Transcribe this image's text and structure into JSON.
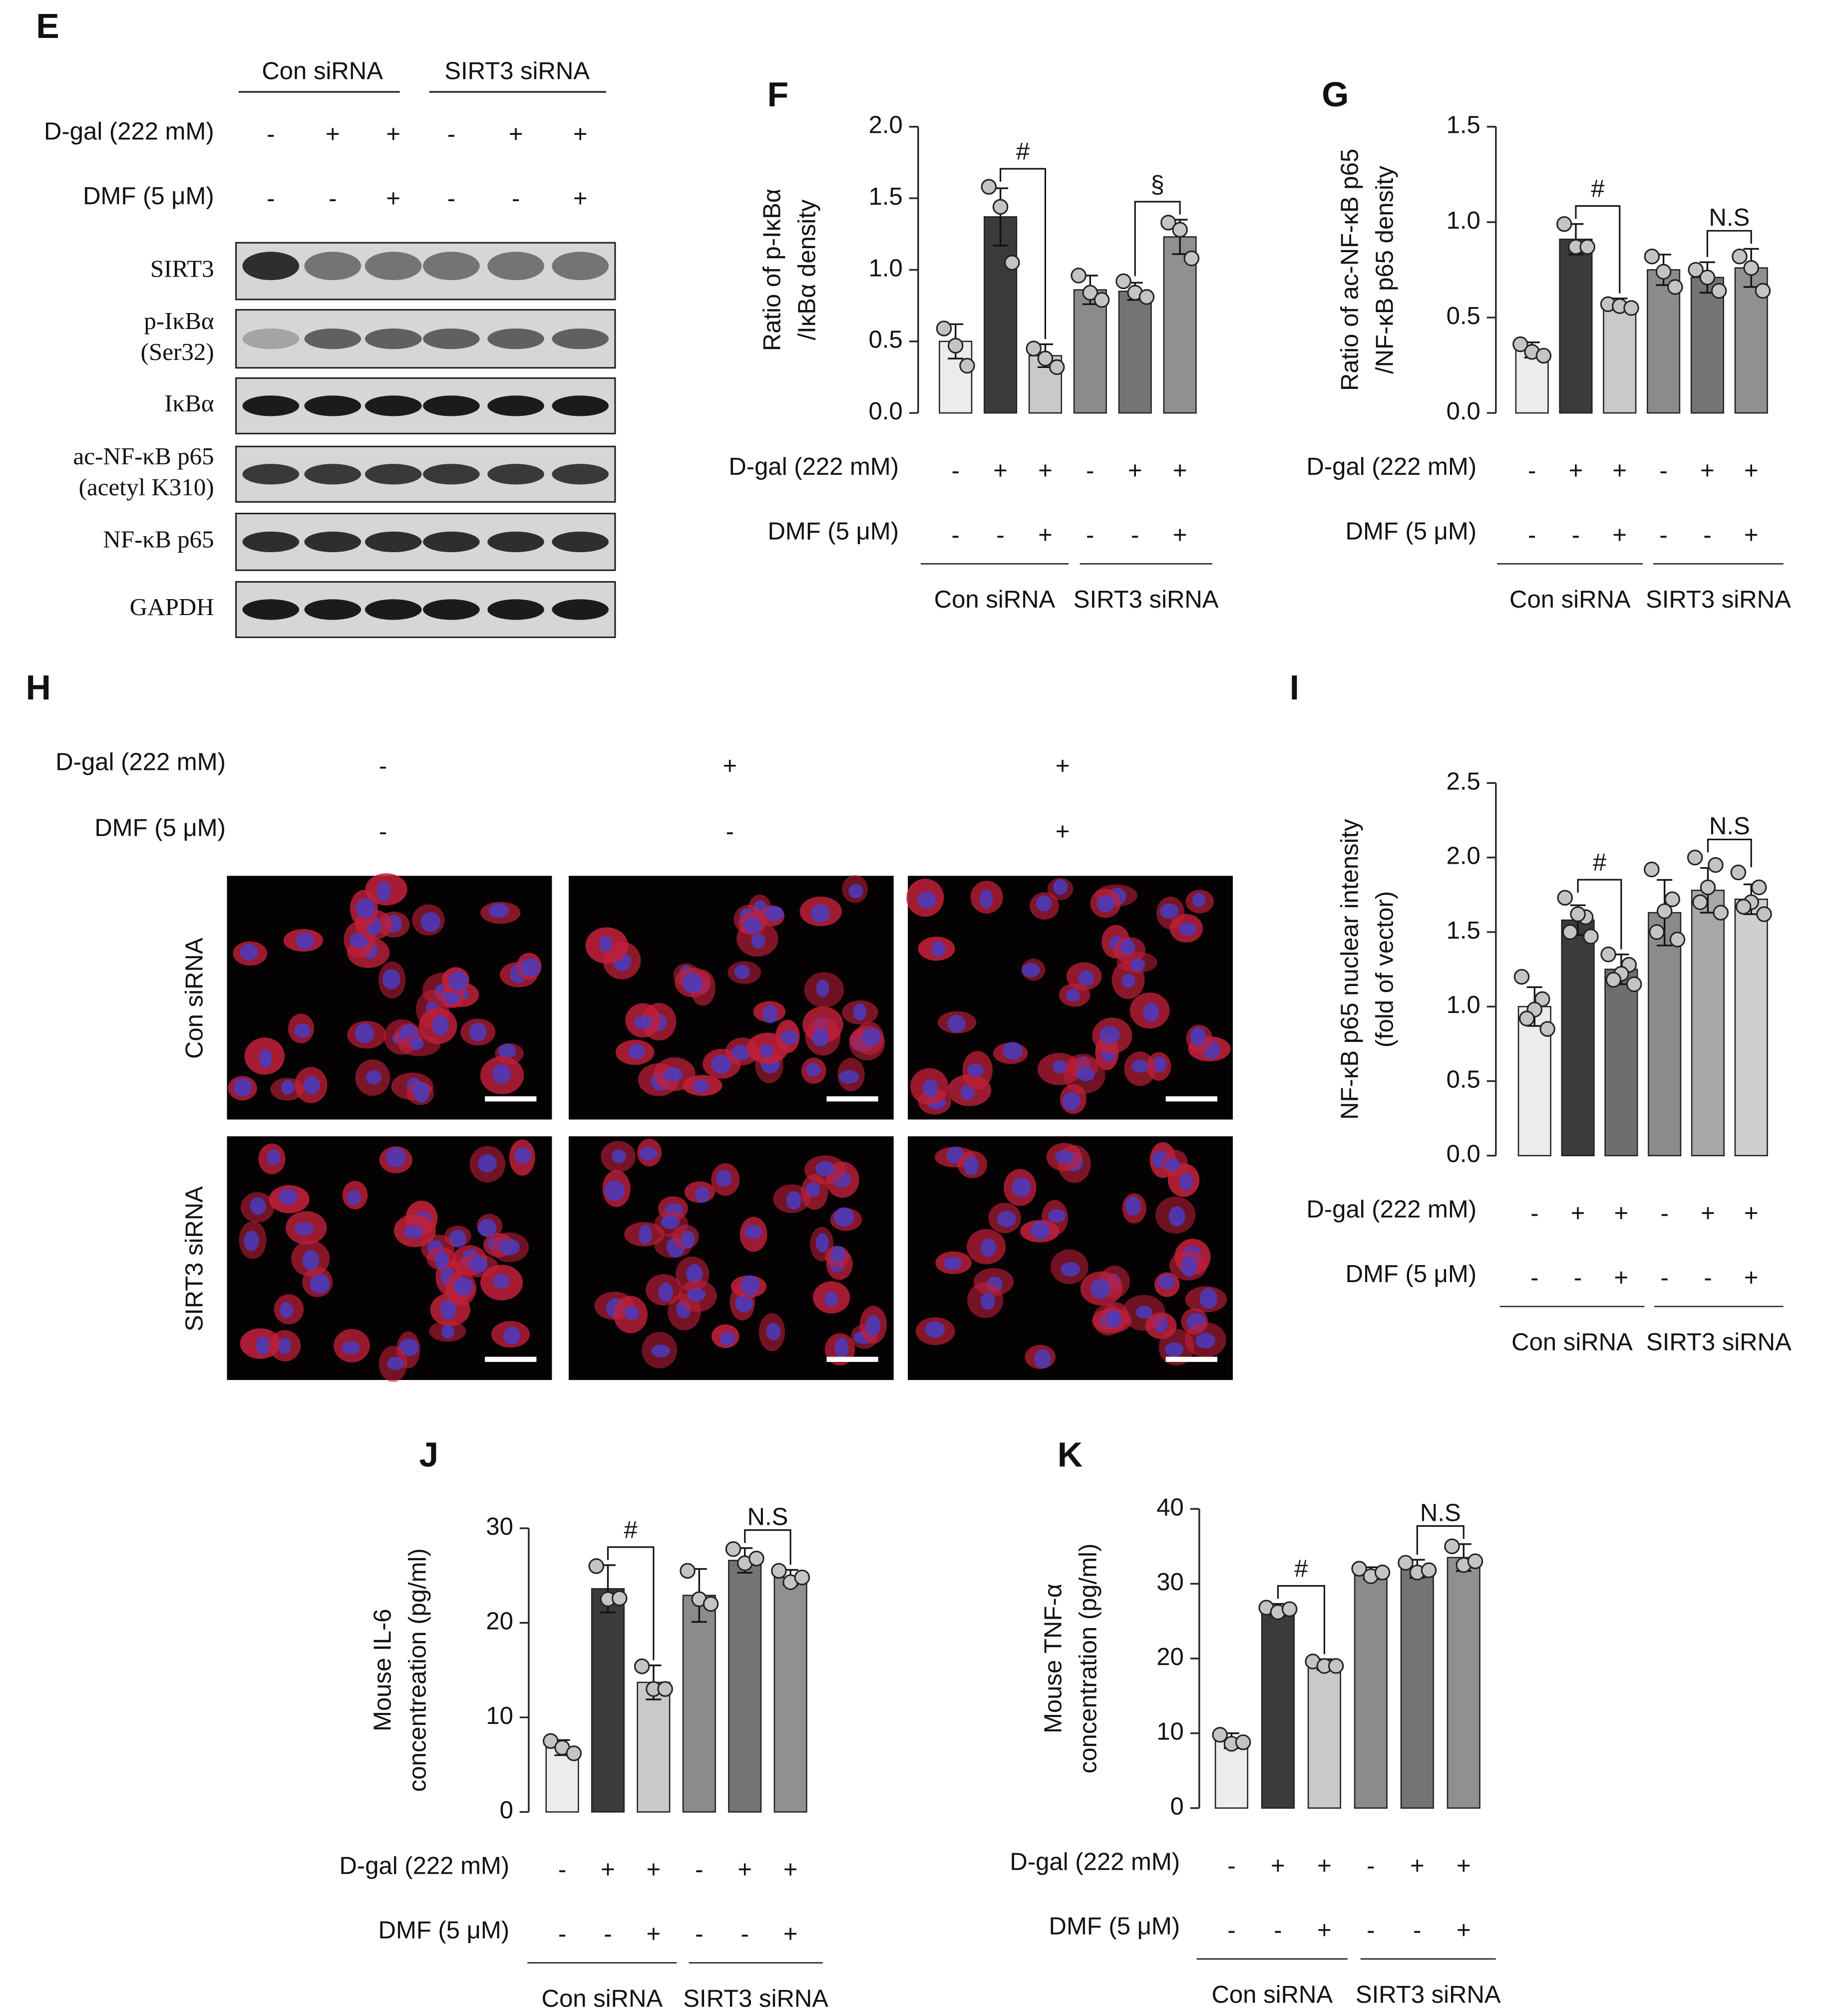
{
  "panel_E": {
    "letter": "E",
    "groups": [
      "Con siRNA",
      "SIRT3 siRNA"
    ],
    "conditions": [
      {
        "label": "D-gal (222 mM)",
        "signs": [
          "-",
          "+",
          "+",
          "-",
          "+",
          "+"
        ]
      },
      {
        "label": "DMF (5 μM)",
        "signs": [
          "-",
          "-",
          "+",
          "-",
          "-",
          "+"
        ]
      }
    ],
    "blots": [
      [
        "SIRT3"
      ],
      [
        "p-IκBα",
        "(Ser32)"
      ],
      [
        "IκBα"
      ],
      [
        "ac-NF-κB p65",
        "(acetyl K310)"
      ],
      [
        "NF-κB p65"
      ],
      [
        "GAPDH"
      ]
    ]
  },
  "panel_H": {
    "letter": "H",
    "conditions": [
      {
        "label": "D-gal (222 mM)",
        "signs": [
          "-",
          "+",
          "+"
        ]
      },
      {
        "label": "DMF (5 μM)",
        "signs": [
          "-",
          "-",
          "+"
        ]
      }
    ],
    "rows": [
      "Con siRNA",
      "SIRT3 siRNA"
    ]
  },
  "chart_data": [
    {
      "type": "bar",
      "panel": "F",
      "ylabel": [
        "Ratio of p-IκBα",
        "/IκBα  density"
      ],
      "categories": [
        null,
        null,
        null,
        null,
        null,
        null
      ],
      "values": [
        0.5,
        1.37,
        0.4,
        0.86,
        0.85,
        1.23
      ],
      "errors": [
        0.12,
        0.2,
        0.08,
        0.1,
        0.06,
        0.12
      ],
      "points": [
        [
          0.59,
          0.47,
          0.33
        ],
        [
          1.58,
          1.44,
          1.05
        ],
        [
          0.45,
          0.38,
          0.32
        ],
        [
          0.96,
          0.84,
          0.79
        ],
        [
          0.92,
          0.84,
          0.81
        ],
        [
          1.33,
          1.28,
          1.08
        ]
      ],
      "colors": [
        "#ececec",
        "#3b3b3d",
        "#c9c9cb",
        "#8b8b8d",
        "#747476",
        "#909092"
      ],
      "ylim": [
        0,
        2.0
      ],
      "yticks": [
        {
          "value": 0,
          "label": "0.0"
        },
        {
          "value": 0.5,
          "label": "0.5"
        },
        {
          "value": 1,
          "label": "1.0"
        },
        {
          "value": 1.5,
          "label": "1.5"
        },
        {
          "value": 2,
          "label": "2.0"
        }
      ],
      "conditions": [
        {
          "label": "D-gal (222 mM)",
          "signs": [
            "-",
            "+",
            "+",
            "-",
            "+",
            "+"
          ]
        },
        {
          "label": "DMF (5 μM)",
          "signs": [
            "-",
            "-",
            "+",
            "-",
            "-",
            "+"
          ]
        }
      ],
      "groups": [
        "Con siRNA",
        "SIRT3 siRNA"
      ],
      "annotations": [
        "#",
        "§"
      ]
    },
    {
      "type": "bar",
      "panel": "G",
      "ylabel": [
        "Ratio of ac-NF-κB p65",
        "/NF-κB p65 density"
      ],
      "categories": [
        null,
        null,
        null,
        null,
        null,
        null
      ],
      "values": [
        0.33,
        0.91,
        0.57,
        0.75,
        0.71,
        0.76
      ],
      "errors": [
        0.04,
        0.08,
        0.03,
        0.08,
        0.08,
        0.1
      ],
      "points": [
        [
          0.36,
          0.32,
          0.3
        ],
        [
          0.99,
          0.87,
          0.87
        ],
        [
          0.57,
          0.56,
          0.55
        ],
        [
          0.82,
          0.74,
          0.66
        ],
        [
          0.75,
          0.71,
          0.64
        ],
        [
          0.82,
          0.76,
          0.64
        ]
      ],
      "colors": [
        "#ececec",
        "#3b3b3d",
        "#c9c9cb",
        "#8b8b8d",
        "#747476",
        "#909092"
      ],
      "ylim": [
        0,
        1.5
      ],
      "yticks": [
        {
          "value": 0,
          "label": "0.0"
        },
        {
          "value": 0.5,
          "label": "0.5"
        },
        {
          "value": 1,
          "label": "1.0"
        },
        {
          "value": 1.5,
          "label": "1.5"
        }
      ],
      "conditions": [
        {
          "label": "D-gal (222 mM)",
          "signs": [
            "-",
            "+",
            "+",
            "-",
            "+",
            "+"
          ]
        },
        {
          "label": "DMF (5 μM)",
          "signs": [
            "-",
            "-",
            "+",
            "-",
            "-",
            "+"
          ]
        }
      ],
      "groups": [
        "Con siRNA",
        "SIRT3 siRNA"
      ],
      "annotations": [
        "#",
        "N.S"
      ]
    },
    {
      "type": "bar",
      "panel": "I",
      "ylabel": [
        "NF-κB p65 nuclear intensity",
        "(fold of vector)"
      ],
      "categories": [
        null,
        null,
        null,
        null,
        null,
        null
      ],
      "values": [
        1.0,
        1.58,
        1.25,
        1.63,
        1.78,
        1.72
      ],
      "errors": [
        0.13,
        0.1,
        0.1,
        0.22,
        0.15,
        0.1
      ],
      "points": [
        [
          1.2,
          1.05,
          0.98,
          0.92,
          0.85
        ],
        [
          1.73,
          1.6,
          1.62,
          1.5,
          1.47
        ],
        [
          1.35,
          1.28,
          1.22,
          1.18,
          1.15
        ],
        [
          1.92,
          1.72,
          1.64,
          1.5,
          1.45
        ],
        [
          2.0,
          1.95,
          1.8,
          1.7,
          1.63
        ],
        [
          1.9,
          1.8,
          1.7,
          1.67,
          1.62
        ]
      ],
      "colors": [
        "#ececec",
        "#3b3b3d",
        "#6e6e70",
        "#8b8b8d",
        "#a8a8aa",
        "#cfcfd1"
      ],
      "ylim": [
        0,
        2.5
      ],
      "yticks": [
        {
          "value": 0,
          "label": "0.0"
        },
        {
          "value": 0.5,
          "label": "0.5"
        },
        {
          "value": 1,
          "label": "1.0"
        },
        {
          "value": 1.5,
          "label": "1.5"
        },
        {
          "value": 2,
          "label": "2.0"
        },
        {
          "value": 2.5,
          "label": "2.5"
        }
      ],
      "conditions": [
        {
          "label": "D-gal (222 mM)",
          "signs": [
            "-",
            "+",
            "+",
            "-",
            "+",
            "+"
          ]
        },
        {
          "label": "DMF (5 μM)",
          "signs": [
            "-",
            "-",
            "+",
            "-",
            "-",
            "+"
          ]
        }
      ],
      "groups": [
        "Con siRNA",
        "SIRT3 siRNA"
      ],
      "annotations": [
        "#",
        "N.S"
      ]
    },
    {
      "type": "bar",
      "panel": "J",
      "ylabel": [
        "Mouse IL-6",
        "concentreation (pg/ml)"
      ],
      "categories": [
        null,
        null,
        null,
        null,
        null,
        null
      ],
      "values": [
        6.8,
        23.6,
        13.7,
        22.9,
        26.6,
        24.8
      ],
      "errors": [
        0.8,
        2.5,
        1.8,
        2.8,
        1.3,
        0.8
      ],
      "points": [
        [
          7.5,
          6.8,
          6.2
        ],
        [
          26,
          22.5,
          22.6
        ],
        [
          15.4,
          13,
          13
        ],
        [
          25.5,
          22.5,
          22
        ],
        [
          27.8,
          26.3,
          26.8
        ],
        [
          25.5,
          24.3,
          24.8
        ]
      ],
      "colors": [
        "#ececec",
        "#3b3b3d",
        "#c9c9cb",
        "#8b8b8d",
        "#747476",
        "#909092"
      ],
      "ylim": [
        0,
        30
      ],
      "yticks": [
        0,
        10,
        20,
        30
      ],
      "conditions": [
        {
          "label": "D-gal (222 mM)",
          "signs": [
            "-",
            "+",
            "+",
            "-",
            "+",
            "+"
          ]
        },
        {
          "label": "DMF (5 μM)",
          "signs": [
            "-",
            "-",
            "+",
            "-",
            "-",
            "+"
          ]
        }
      ],
      "groups": [
        "Con siRNA",
        "SIRT3 siRNA"
      ],
      "annotations": [
        "#",
        "N.S"
      ]
    },
    {
      "type": "bar",
      "panel": "K",
      "ylabel": [
        "Mouse TNF-α",
        "concentration (pg/ml)"
      ],
      "categories": [
        null,
        null,
        null,
        null,
        null,
        null
      ],
      "values": [
        9,
        26.5,
        19.2,
        31.4,
        32,
        33.5
      ],
      "errors": [
        1,
        0.8,
        0.7,
        0.8,
        1.2,
        1.8
      ],
      "points": [
        [
          9.8,
          8.6,
          8.8
        ],
        [
          26.8,
          26.2,
          26.6
        ],
        [
          19.6,
          19,
          19
        ],
        [
          32,
          31,
          31.5
        ],
        [
          32.8,
          31.5,
          31.8
        ],
        [
          35,
          32.5,
          33
        ]
      ],
      "colors": [
        "#ececec",
        "#3b3b3d",
        "#c9c9cb",
        "#8b8b8d",
        "#747476",
        "#909092"
      ],
      "ylim": [
        0,
        40
      ],
      "yticks": [
        0,
        10,
        20,
        30,
        40
      ],
      "conditions": [
        {
          "label": "D-gal (222 mM)",
          "signs": [
            "-",
            "+",
            "+",
            "-",
            "+",
            "+"
          ]
        },
        {
          "label": "DMF (5 μM)",
          "signs": [
            "-",
            "-",
            "+",
            "-",
            "-",
            "+"
          ]
        }
      ],
      "groups": [
        "Con siRNA",
        "SIRT3 siRNA"
      ],
      "annotations": [
        "#",
        "N.S"
      ]
    }
  ]
}
